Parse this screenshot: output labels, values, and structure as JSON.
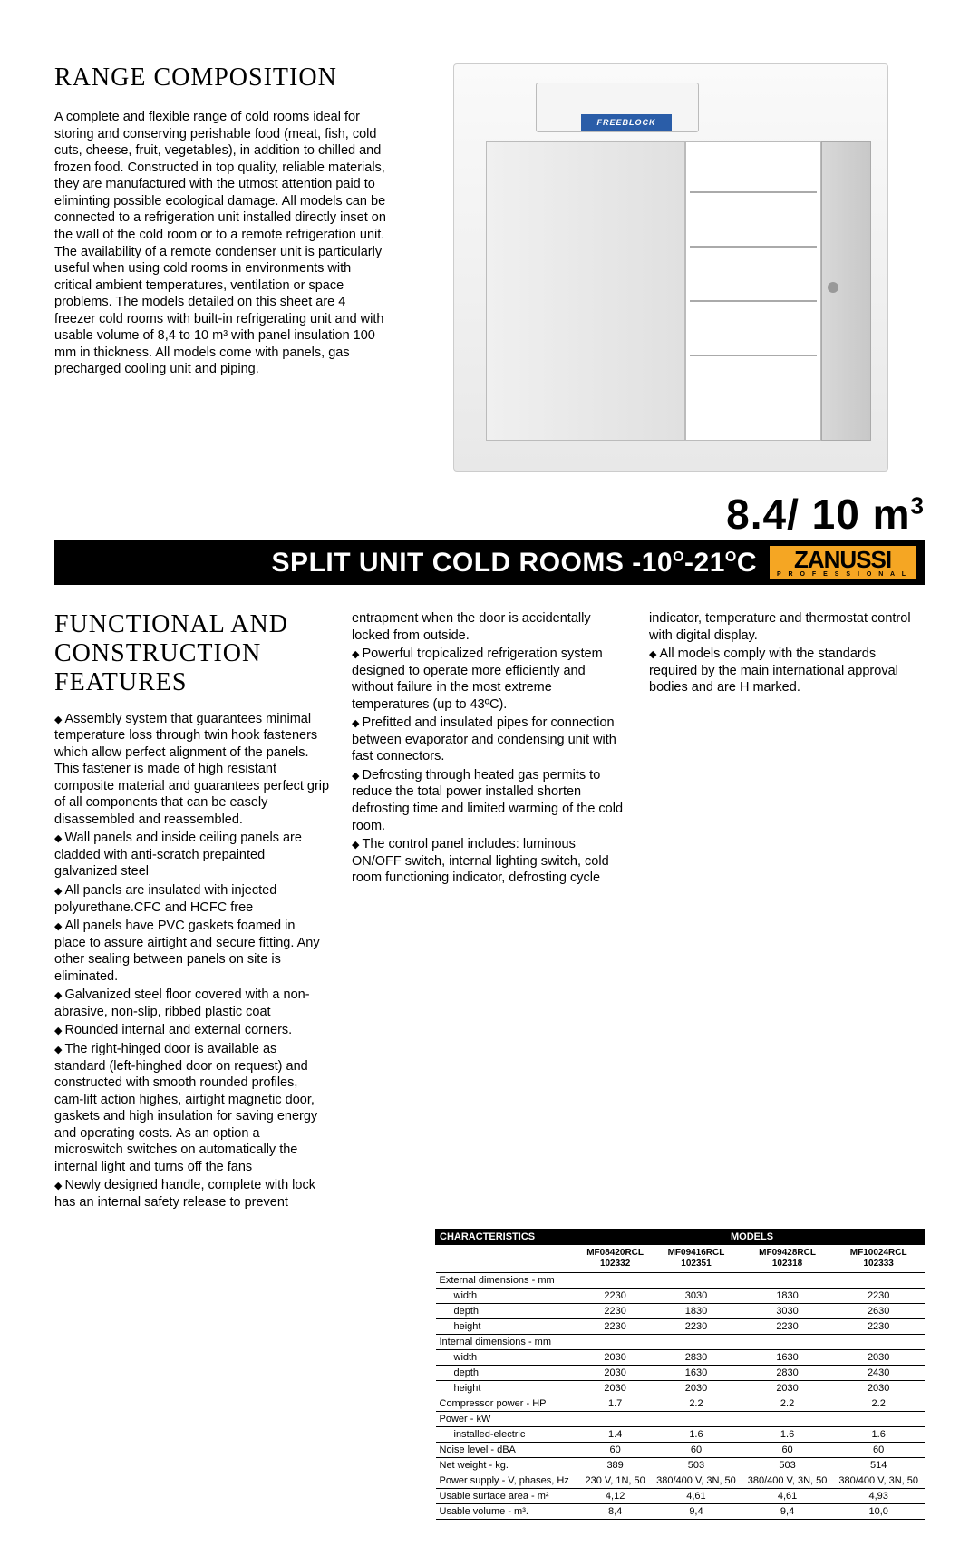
{
  "range": {
    "heading": "RANGE COMPOSITION",
    "text": "A complete and flexible range of cold rooms ideal for storing and conserving perishable food (meat, fish, cold cuts, cheese, fruit, vegetables), in addition to chilled and frozen food. Constructed in top quality, reliable materials, they are manufactured with the utmost attention paid to eliminting possible ecological damage. All models can be connected to a refrigeration unit installed directly inset on the wall of the cold room or to a remote refrigeration unit. The availability of a remote condenser unit is particularly useful when using cold rooms in environments with critical ambient temperatures, ventilation or space problems. The models detailed on this sheet are 4 freezer cold rooms with built-in refrigerating unit and with usable volume of 8,4 to 10 m³ with panel insulation 100 mm in thickness. All models come with panels, gas precharged cooling unit and piping.",
    "img_label": "FREEBLOCK"
  },
  "volume_text": "8.4/ 10  m",
  "volume_sup": "3",
  "bar": {
    "title_a": "SPLIT UNIT COLD ROOMS -10",
    "title_b": "-21",
    "title_c": "C",
    "deg": "O",
    "brand": "ZANUSSI",
    "brand_sub": "P R O F E S S I O N A L"
  },
  "features": {
    "heading": "FUNCTIONAL AND CONSTRUCTION FEATURES",
    "col1": [
      {
        "t": "b",
        "text": "Assembly system that guarantees minimal temperature loss through twin hook fasteners which allow perfect alignment of the panels. This fastener is made of high resistant composite material and guarantees perfect grip of all components that can be easely disassembled and reassembled."
      },
      {
        "t": "b",
        "text": "Wall panels and inside ceiling panels are cladded with anti-scratch prepainted galvanized steel"
      },
      {
        "t": "b",
        "text": "All panels are insulated with injected polyurethane.CFC and HCFC free"
      },
      {
        "t": "b",
        "text": "All panels have PVC gaskets foamed in place to assure airtight and secure fitting. Any other sealing between panels on site is eliminated."
      },
      {
        "t": "b",
        "text": "Galvanized steel floor covered with a non-abrasive, non-slip, ribbed plastic coat"
      },
      {
        "t": "b",
        "text": "Rounded internal and external corners."
      },
      {
        "t": "b",
        "text": "The right-hinged door is available as standard (left-hinghed door on request) and constructed with smooth rounded profiles, cam-lift action highes, airtight magnetic door, gaskets and high insulation for saving energy and operating costs. As an option a microswitch switches on automatically the internal light and turns off the fans"
      },
      {
        "t": "b",
        "text": "Newly designed handle, complete with lock has an internal safety release to prevent"
      }
    ],
    "col2": [
      {
        "t": "c",
        "text": "entrapment when the door is accidentally locked from outside."
      },
      {
        "t": "b",
        "text": "Powerful tropicalized refrigeration system designed to operate more efficiently and without failure in the most extreme temperatures (up to 43ºC)."
      },
      {
        "t": "b",
        "text": "Prefitted and insulated pipes for connection between evaporator and condensing unit with fast connectors."
      },
      {
        "t": "b",
        "text": "Defrosting through heated gas permits to reduce the total power installed shorten defrosting time and limited warming of the cold room."
      },
      {
        "t": "b",
        "text": "The control panel includes: luminous ON/OFF switch, internal lighting switch, cold room functioning indicator, defrosting cycle"
      }
    ],
    "col3": [
      {
        "t": "c",
        "text": "indicator, temperature and thermostat control with digital display."
      },
      {
        "t": "b",
        "text": "All models comply with the standards required by the main international approval bodies and are H marked."
      }
    ]
  },
  "table": {
    "header_left": "CHARACTERISTICS",
    "header_right": "MODELS",
    "models": [
      {
        "name": "MF08420RCL",
        "code": "102332"
      },
      {
        "name": "MF09416RCL",
        "code": "102351"
      },
      {
        "name": "MF09428RCL",
        "code": "102318"
      },
      {
        "name": "MF10024RCL",
        "code": "102333"
      }
    ],
    "rows": [
      {
        "label": "External dimensions - mm",
        "indent": false,
        "vals": [
          "",
          "",
          "",
          ""
        ]
      },
      {
        "label": "width",
        "indent": true,
        "vals": [
          "2230",
          "3030",
          "1830",
          "2230"
        ]
      },
      {
        "label": "depth",
        "indent": true,
        "vals": [
          "2230",
          "1830",
          "3030",
          "2630"
        ]
      },
      {
        "label": "height",
        "indent": true,
        "vals": [
          "2230",
          "2230",
          "2230",
          "2230"
        ]
      },
      {
        "label": "Internal dimensions - mm",
        "indent": false,
        "vals": [
          "",
          "",
          "",
          ""
        ]
      },
      {
        "label": "width",
        "indent": true,
        "vals": [
          "2030",
          "2830",
          "1630",
          "2030"
        ]
      },
      {
        "label": "depth",
        "indent": true,
        "vals": [
          "2030",
          "1630",
          "2830",
          "2430"
        ]
      },
      {
        "label": "height",
        "indent": true,
        "vals": [
          "2030",
          "2030",
          "2030",
          "2030"
        ]
      },
      {
        "label": "Compressor power - HP",
        "indent": false,
        "vals": [
          "1.7",
          "2.2",
          "2.2",
          "2.2"
        ]
      },
      {
        "label": "Power - kW",
        "indent": false,
        "vals": [
          "",
          "",
          "",
          ""
        ]
      },
      {
        "label": "installed-electric",
        "indent": true,
        "vals": [
          "1.4",
          "1.6",
          "1.6",
          "1.6"
        ]
      },
      {
        "label": "Noise level - dBA",
        "indent": false,
        "vals": [
          "60",
          "60",
          "60",
          "60"
        ]
      },
      {
        "label": "Net weight - kg.",
        "indent": false,
        "vals": [
          "389",
          "503",
          "503",
          "514"
        ]
      },
      {
        "label": "Power supply - V, phases, Hz",
        "indent": false,
        "vals": [
          "230 V, 1N, 50",
          "380/400 V, 3N, 50",
          "380/400 V, 3N, 50",
          "380/400 V, 3N, 50"
        ]
      },
      {
        "label": "Usable surface area - m²",
        "indent": false,
        "vals": [
          "4,12",
          "4,61",
          "4,61",
          "4,93"
        ]
      },
      {
        "label": "Usable volume - m³.",
        "indent": false,
        "vals": [
          "8,4",
          "9,4",
          "9,4",
          "10,0"
        ]
      }
    ]
  }
}
